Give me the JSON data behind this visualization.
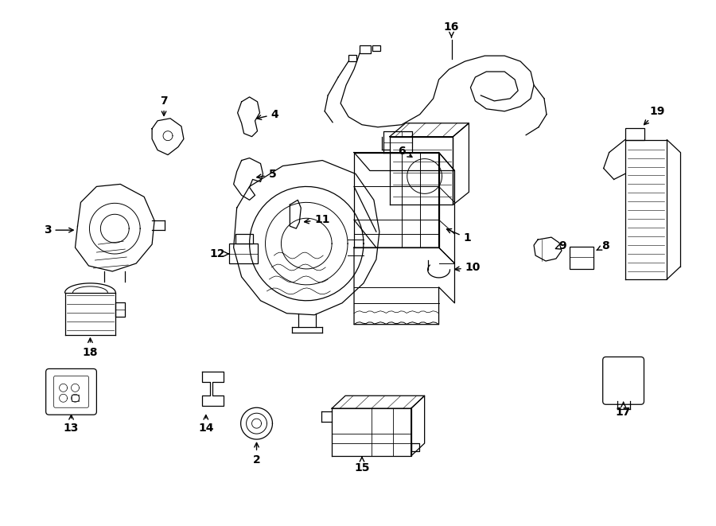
{
  "bg_color": "#ffffff",
  "line_color": "#000000",
  "fig_width": 9.0,
  "fig_height": 6.61,
  "dpi": 100,
  "xlim": [
    0,
    9.0
  ],
  "ylim": [
    0,
    6.61
  ]
}
